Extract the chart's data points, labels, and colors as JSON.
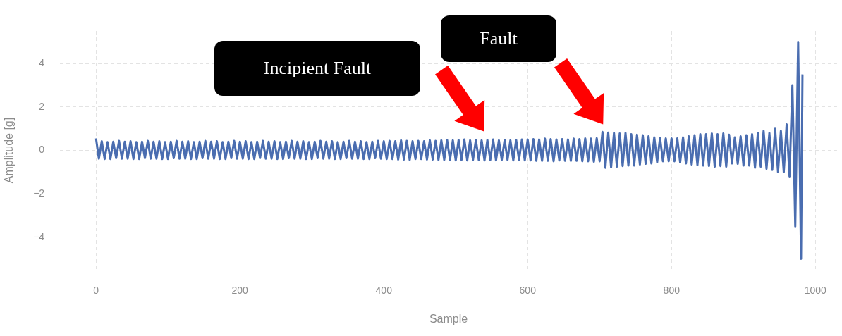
{
  "chart_data": {
    "type": "line",
    "xlabel": "Sample",
    "ylabel": "Amplitude [g]",
    "xlim": [
      -50,
      1030
    ],
    "xticks": [
      0,
      200,
      400,
      600,
      800,
      1000
    ],
    "ylim": [
      -5.5,
      5.5
    ],
    "yticks": [
      {
        "value": -4,
        "label": "−4"
      },
      {
        "value": -2,
        "label": "−2"
      },
      0,
      2,
      4
    ],
    "grid": true,
    "legend": false,
    "marker": "none",
    "line_style": "solid",
    "annotations": [
      "Incipient Fault",
      "Fault"
    ],
    "series": [
      {
        "color": "#4a6db0",
        "x": [
          0,
          4,
          8,
          12,
          16,
          20,
          24,
          28,
          32,
          36,
          40,
          44,
          48,
          52,
          56,
          60,
          64,
          68,
          72,
          76,
          80,
          84,
          88,
          92,
          96,
          100,
          104,
          108,
          112,
          116,
          120,
          124,
          128,
          132,
          136,
          140,
          144,
          148,
          152,
          156,
          160,
          164,
          168,
          172,
          176,
          180,
          184,
          188,
          192,
          196,
          200,
          204,
          208,
          212,
          216,
          220,
          224,
          228,
          232,
          236,
          240,
          244,
          248,
          252,
          256,
          260,
          264,
          268,
          272,
          276,
          280,
          284,
          288,
          292,
          296,
          300,
          304,
          308,
          312,
          316,
          320,
          324,
          328,
          332,
          336,
          340,
          344,
          348,
          352,
          356,
          360,
          364,
          368,
          372,
          376,
          380,
          384,
          388,
          392,
          396,
          400,
          404,
          408,
          412,
          416,
          420,
          424,
          428,
          432,
          436,
          440,
          444,
          448,
          452,
          456,
          460,
          464,
          468,
          472,
          476,
          480,
          484,
          488,
          492,
          496,
          500,
          504,
          508,
          512,
          516,
          520,
          524,
          528,
          532,
          536,
          540,
          544,
          548,
          552,
          556,
          560,
          564,
          568,
          572,
          576,
          580,
          584,
          588,
          592,
          596,
          600,
          604,
          608,
          612,
          616,
          620,
          624,
          628,
          632,
          636,
          640,
          644,
          648,
          652,
          656,
          660,
          664,
          668,
          672,
          676,
          680,
          684,
          688,
          692,
          696,
          700,
          704,
          708,
          712,
          716,
          720,
          724,
          728,
          732,
          736,
          740,
          744,
          748,
          752,
          756,
          760,
          764,
          768,
          772,
          776,
          780,
          784,
          788,
          792,
          796,
          800,
          804,
          808,
          812,
          816,
          820,
          824,
          828,
          832,
          836,
          840,
          844,
          848,
          852,
          856,
          860,
          864,
          868,
          872,
          876,
          880,
          884,
          888,
          892,
          896,
          900,
          904,
          908,
          912,
          916,
          920,
          924,
          928,
          932,
          936,
          940,
          944,
          948,
          952,
          956,
          960,
          964,
          968,
          972,
          976,
          980,
          982
        ],
        "values": [
          0.55,
          -0.38,
          0.42,
          -0.4,
          0.38,
          -0.4,
          0.4,
          -0.36,
          0.44,
          -0.38,
          0.4,
          -0.38,
          0.42,
          -0.4,
          0.38,
          -0.4,
          0.4,
          -0.36,
          0.44,
          -0.38,
          0.4,
          -0.38,
          0.42,
          -0.4,
          0.38,
          -0.4,
          0.4,
          -0.36,
          0.44,
          -0.38,
          0.4,
          -0.38,
          0.42,
          -0.4,
          0.38,
          -0.4,
          0.4,
          -0.36,
          0.44,
          -0.38,
          0.4,
          -0.38,
          0.42,
          -0.4,
          0.38,
          -0.4,
          0.4,
          -0.36,
          0.44,
          -0.38,
          0.4,
          -0.38,
          0.42,
          -0.4,
          0.38,
          -0.4,
          0.4,
          -0.36,
          0.44,
          -0.38,
          0.4,
          -0.38,
          0.42,
          -0.4,
          0.38,
          -0.4,
          0.4,
          -0.36,
          0.44,
          -0.38,
          0.4,
          -0.38,
          0.42,
          -0.4,
          0.38,
          -0.4,
          0.4,
          -0.36,
          0.44,
          -0.38,
          0.4,
          -0.38,
          0.42,
          -0.4,
          0.38,
          -0.4,
          0.4,
          -0.36,
          0.44,
          -0.38,
          0.4,
          -0.38,
          0.42,
          -0.4,
          0.38,
          -0.4,
          0.4,
          -0.36,
          0.44,
          -0.38,
          0.42,
          -0.4,
          0.44,
          -0.4,
          0.42,
          -0.42,
          0.46,
          -0.42,
          0.44,
          -0.44,
          0.42,
          -0.4,
          0.44,
          -0.4,
          0.42,
          -0.42,
          0.46,
          -0.42,
          0.44,
          -0.44,
          0.46,
          -0.44,
          0.48,
          -0.44,
          0.46,
          -0.46,
          0.48,
          -0.44,
          0.5,
          -0.46,
          0.46,
          -0.44,
          0.48,
          -0.44,
          0.46,
          -0.46,
          0.48,
          -0.44,
          0.5,
          -0.46,
          0.46,
          -0.44,
          0.48,
          -0.44,
          0.46,
          -0.46,
          0.48,
          -0.44,
          0.5,
          -0.46,
          0.5,
          -0.46,
          0.52,
          -0.48,
          0.5,
          -0.48,
          0.54,
          -0.48,
          0.52,
          -0.5,
          0.5,
          -0.46,
          0.52,
          -0.48,
          0.5,
          -0.48,
          0.54,
          -0.48,
          0.52,
          -0.5,
          0.55,
          -0.5,
          0.54,
          -0.52,
          0.56,
          -0.5,
          0.85,
          -0.8,
          0.82,
          -0.78,
          0.8,
          -0.75,
          0.78,
          -0.72,
          0.8,
          -0.7,
          0.75,
          -0.7,
          0.72,
          -0.65,
          0.7,
          -0.62,
          0.65,
          -0.6,
          0.6,
          -0.55,
          0.58,
          -0.5,
          0.55,
          -0.5,
          0.55,
          -0.5,
          0.55,
          -0.55,
          0.6,
          -0.6,
          0.65,
          -0.65,
          0.7,
          -0.68,
          0.75,
          -0.7,
          0.75,
          -0.72,
          0.78,
          -0.75,
          0.75,
          -0.72,
          0.78,
          -0.75,
          0.72,
          -0.6,
          0.6,
          -0.62,
          0.65,
          -0.7,
          0.7,
          -0.7,
          0.75,
          -0.8,
          0.8,
          -0.75,
          0.9,
          -0.85,
          0.8,
          -0.9,
          1.0,
          -1.0,
          0.9,
          -1.0,
          1.2,
          -1.2,
          3.0,
          -3.5,
          5.0,
          -5.0,
          3.5
        ]
      }
    ]
  }
}
